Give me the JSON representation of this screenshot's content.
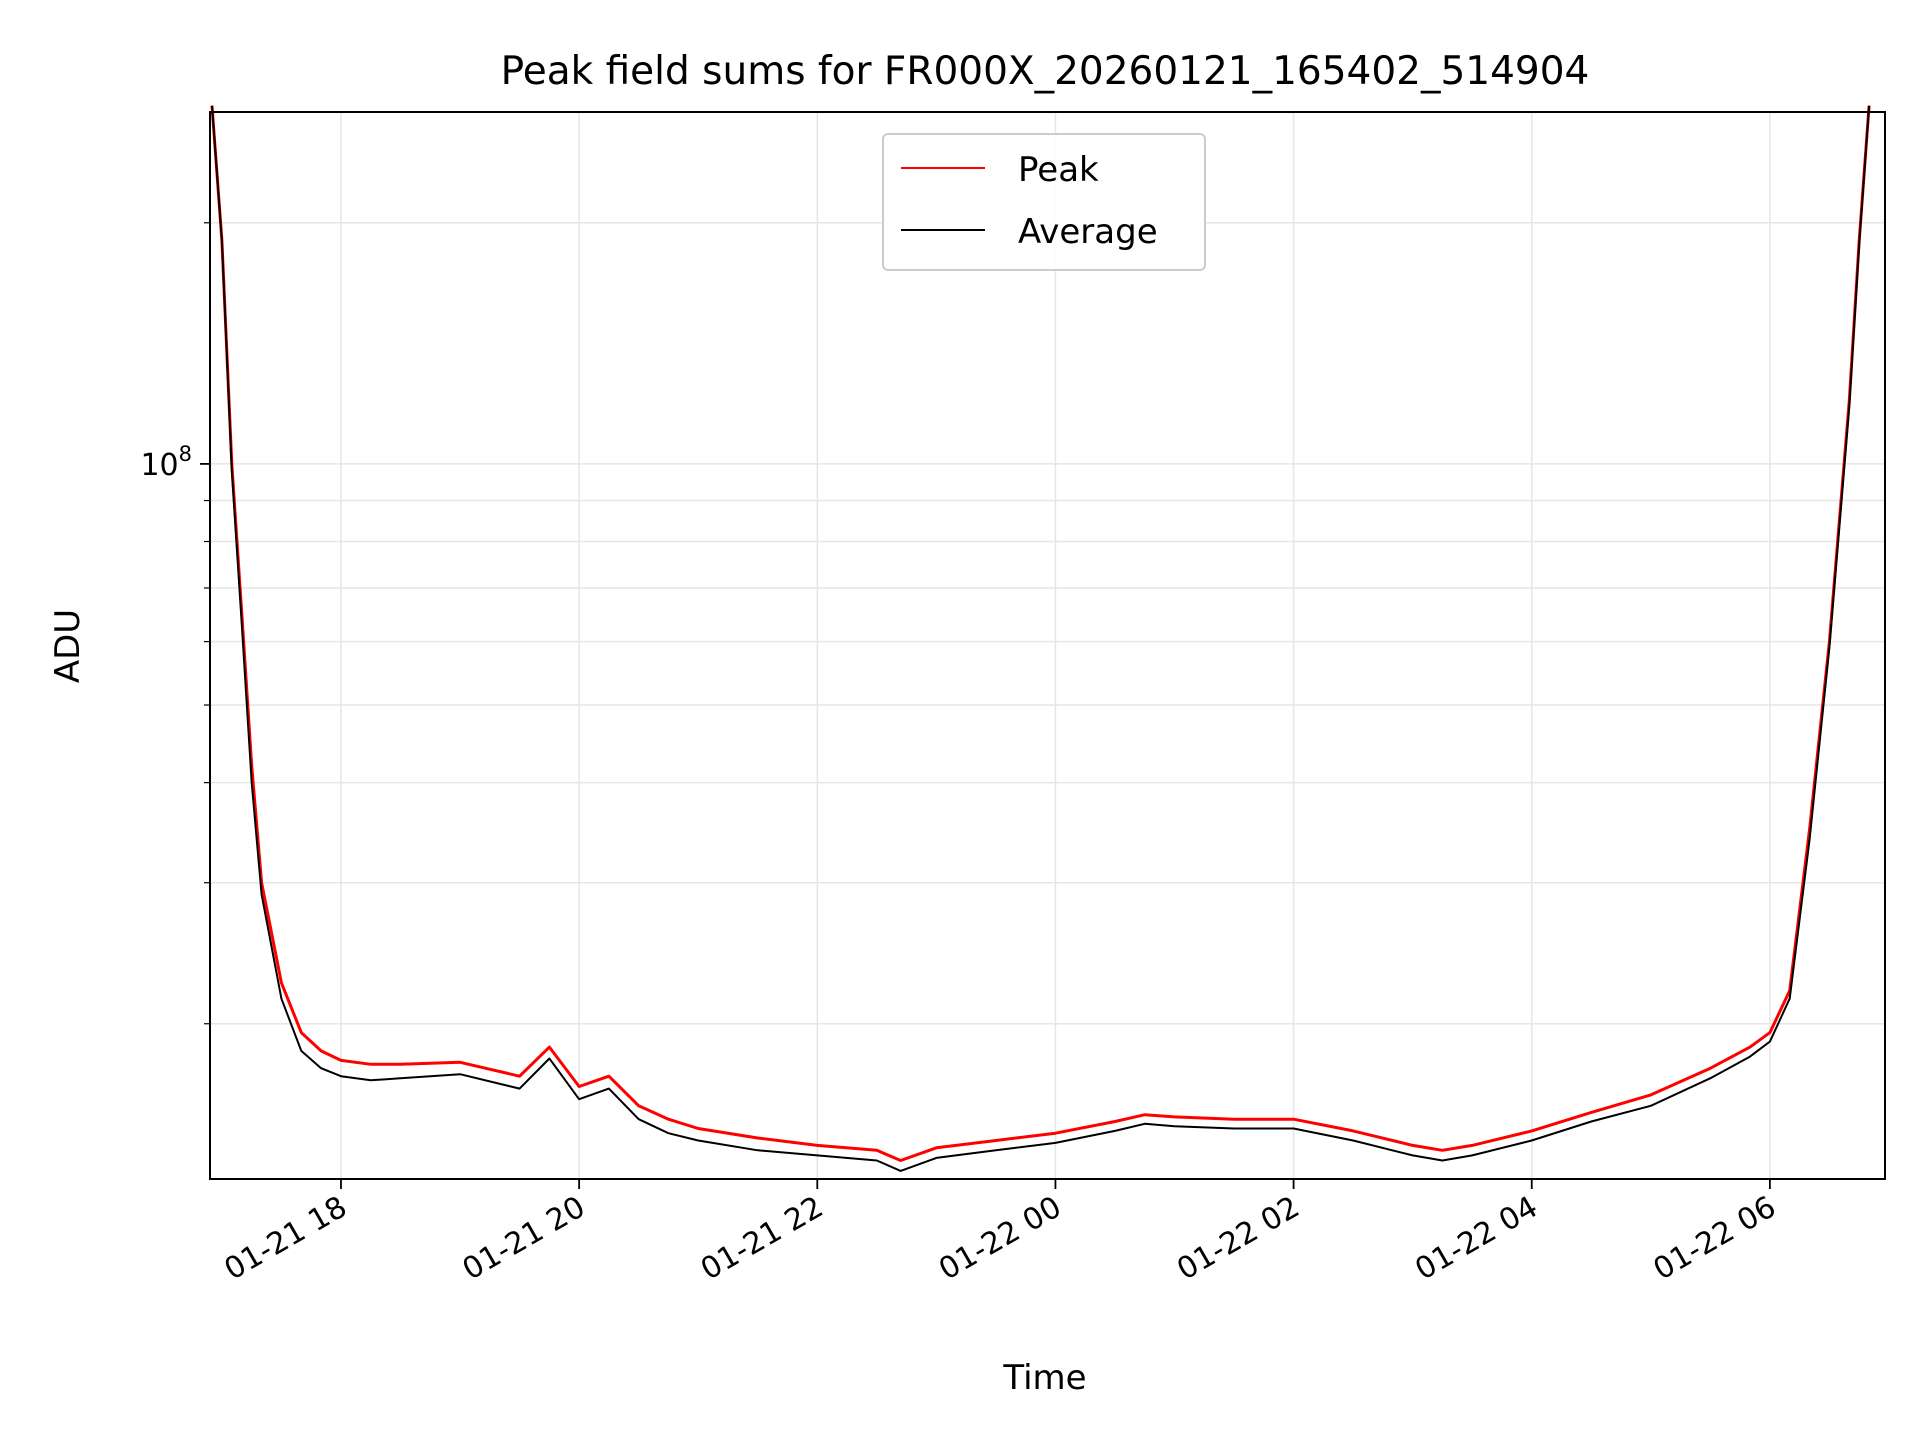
{
  "chart_data": {
    "type": "line",
    "title": "Peak field sums for FR000X_20260121_165402_514904",
    "xlabel": "Time",
    "ylabel": "ADU",
    "y_scale": "log",
    "ylim": [
      12800000,
      275000000
    ],
    "xlim": [
      "2026-01-21 16:54",
      "2026-01-22 06:58"
    ],
    "grid": true,
    "legend_position": "upper center",
    "x_ticks": [
      {
        "value": "2026-01-21 18:00",
        "label": "01-21 18"
      },
      {
        "value": "2026-01-21 20:00",
        "label": "01-21 20"
      },
      {
        "value": "2026-01-21 22:00",
        "label": "01-21 22"
      },
      {
        "value": "2026-01-22 00:00",
        "label": "01-22 00"
      },
      {
        "value": "2026-01-22 02:00",
        "label": "01-22 02"
      },
      {
        "value": "2026-01-22 04:00",
        "label": "01-22 04"
      },
      {
        "value": "2026-01-22 06:00",
        "label": "01-22 06"
      }
    ],
    "y_ticks": [
      {
        "value": 100000000,
        "label_base": "10",
        "label_exp": "8"
      }
    ],
    "x": [
      "2026-01-21 16:55",
      "2026-01-21 17:00",
      "2026-01-21 17:05",
      "2026-01-21 17:10",
      "2026-01-21 17:15",
      "2026-01-21 17:20",
      "2026-01-21 17:30",
      "2026-01-21 17:40",
      "2026-01-21 17:50",
      "2026-01-21 18:00",
      "2026-01-21 18:15",
      "2026-01-21 18:30",
      "2026-01-21 19:00",
      "2026-01-21 19:30",
      "2026-01-21 19:45",
      "2026-01-21 20:00",
      "2026-01-21 20:15",
      "2026-01-21 20:30",
      "2026-01-21 20:45",
      "2026-01-21 21:00",
      "2026-01-21 21:30",
      "2026-01-21 22:00",
      "2026-01-21 22:30",
      "2026-01-21 22:42",
      "2026-01-21 23:00",
      "2026-01-21 23:30",
      "2026-01-22 00:00",
      "2026-01-22 00:30",
      "2026-01-22 00:45",
      "2026-01-22 01:00",
      "2026-01-22 01:30",
      "2026-01-22 02:00",
      "2026-01-22 02:30",
      "2026-01-22 03:00",
      "2026-01-22 03:15",
      "2026-01-22 03:30",
      "2026-01-22 04:00",
      "2026-01-22 04:30",
      "2026-01-22 05:00",
      "2026-01-22 05:30",
      "2026-01-22 05:50",
      "2026-01-22 06:00",
      "2026-01-22 06:10",
      "2026-01-22 06:20",
      "2026-01-22 06:30",
      "2026-01-22 06:40",
      "2026-01-22 06:45",
      "2026-01-22 06:50"
    ],
    "series": [
      {
        "name": "Peak",
        "color": "#ff0000",
        "values": [
          280000000,
          190000000,
          100000000,
          65000000,
          42000000,
          30000000,
          22500000,
          19500000,
          18500000,
          18000000,
          17800000,
          17800000,
          17900000,
          17200000,
          18700000,
          16700000,
          17200000,
          15800000,
          15200000,
          14800000,
          14400000,
          14100000,
          13900000,
          13500000,
          14000000,
          14300000,
          14600000,
          15100000,
          15400000,
          15300000,
          15200000,
          15200000,
          14700000,
          14100000,
          13900000,
          14100000,
          14700000,
          15500000,
          16300000,
          17600000,
          18700000,
          19500000,
          22000000,
          35000000,
          60000000,
          120000000,
          190000000,
          280000000
        ]
      },
      {
        "name": "Average",
        "color": "#000000",
        "values": [
          280000000,
          190000000,
          98000000,
          63000000,
          40000000,
          29000000,
          21500000,
          18500000,
          17600000,
          17200000,
          17000000,
          17100000,
          17300000,
          16600000,
          18100000,
          16100000,
          16600000,
          15200000,
          14600000,
          14300000,
          13900000,
          13700000,
          13500000,
          13100000,
          13600000,
          13900000,
          14200000,
          14700000,
          15000000,
          14900000,
          14800000,
          14800000,
          14300000,
          13700000,
          13500000,
          13700000,
          14300000,
          15100000,
          15800000,
          17100000,
          18200000,
          19000000,
          21500000,
          34000000,
          59000000,
          118000000,
          188000000,
          280000000
        ]
      }
    ]
  }
}
